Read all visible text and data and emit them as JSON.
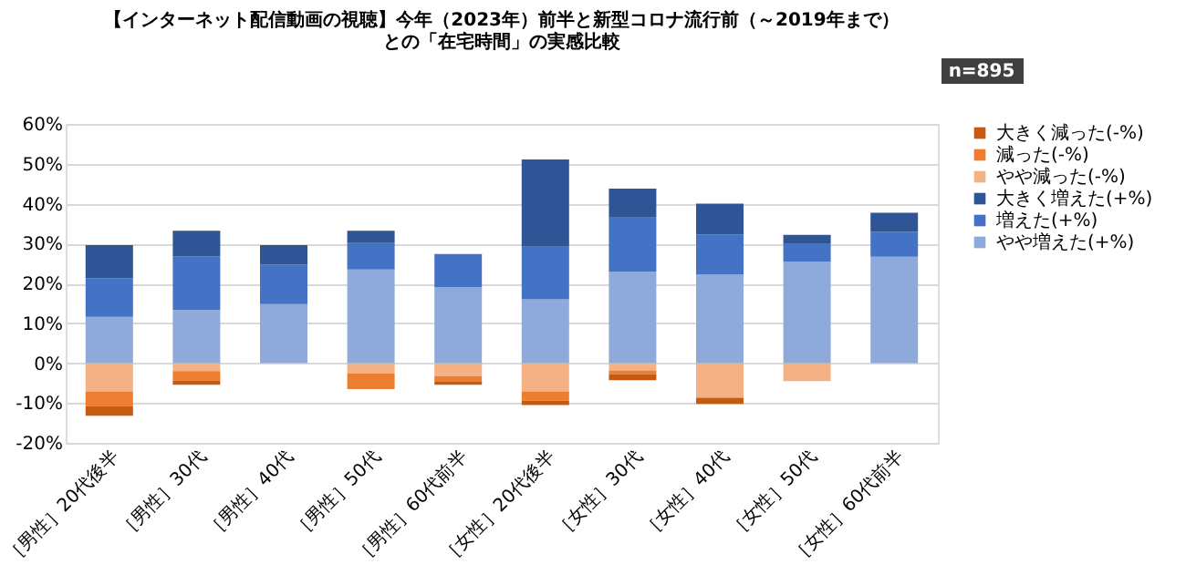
{
  "chart_data": {
    "type": "bar",
    "stacked": true,
    "title": [
      "【インターネット配信動画の視聴】今年（2023年）前半と新型コロナ流行前（～2019年まで）",
      "との「在宅時間」の実感比較"
    ],
    "annotations": [
      "n=895"
    ],
    "categories": [
      "［男性］20代後半",
      "［男性］30代",
      "［男性］40代",
      "［男性］50代",
      "［男性］60代前半",
      "［女性］20代後半",
      "［女性］30代",
      "［女性］40代",
      "［女性］50代",
      "［女性］60代前半"
    ],
    "series": [
      {
        "name": "やや減った(-%)",
        "color": "#f4b183",
        "values": [
          -7.1,
          -2.0,
          0,
          -2.6,
          -3.3,
          -7.1,
          -1.8,
          -8.7,
          -4.5,
          0
        ]
      },
      {
        "name": "減った(-%)",
        "color": "#ed7d31",
        "values": [
          -3.7,
          -2.4,
          0,
          -3.9,
          -1.4,
          -2.3,
          -1.0,
          0,
          0,
          0
        ]
      },
      {
        "name": "大きく減った(-%)",
        "color": "#c55a11",
        "values": [
          -2.4,
          -1.0,
          0,
          0,
          -0.7,
          -1.1,
          -1.5,
          -1.5,
          0,
          0
        ]
      },
      {
        "name": "やや増えた(+%)",
        "color": "#8eaadb",
        "values": [
          11.6,
          13.3,
          14.8,
          23.5,
          19.1,
          16.0,
          23.0,
          22.3,
          25.5,
          26.7
        ]
      },
      {
        "name": "増えた(+%)",
        "color": "#4472c4",
        "values": [
          9.7,
          13.5,
          9.9,
          6.6,
          8.3,
          13.2,
          13.5,
          10.0,
          4.4,
          6.2
        ]
      },
      {
        "name": "大きく増えた(+%)",
        "color": "#2f5597",
        "values": [
          8.3,
          6.4,
          4.9,
          3.1,
          0,
          21.9,
          7.3,
          7.7,
          2.3,
          4.8
        ]
      }
    ],
    "ylim": [
      -20,
      60
    ],
    "yticks": [
      {
        "value": -20,
        "label": "-20%"
      },
      {
        "value": -10,
        "label": "-10%"
      },
      {
        "value": 0,
        "label": "0%"
      },
      {
        "value": 10,
        "label": "10%"
      },
      {
        "value": 20,
        "label": "20%"
      },
      {
        "value": 30,
        "label": "30%"
      },
      {
        "value": 40,
        "label": "40%"
      },
      {
        "value": 50,
        "label": "50%"
      },
      {
        "value": 60,
        "label": "60%"
      }
    ],
    "grid": "y",
    "legend": "right"
  }
}
